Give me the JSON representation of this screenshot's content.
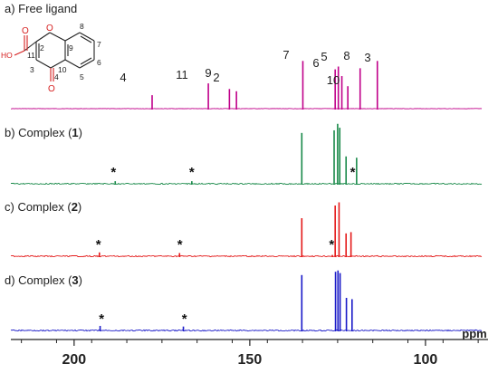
{
  "chart_data": {
    "type": "line",
    "title": "",
    "xlabel": "ppm",
    "x_axis": {
      "range": [
        218,
        84
      ],
      "reversed": true,
      "ticks": [
        200,
        150,
        100
      ]
    },
    "panels": [
      {
        "label_prefix": "a) Free ligand",
        "label_number": "",
        "label_suffix": "",
        "color": "#c0008a",
        "peaks": [
          {
            "ppm": 177.8,
            "height": 0.24,
            "label": "4"
          },
          {
            "ppm": 161.8,
            "height": 0.45,
            "label": "11"
          },
          {
            "ppm": 155.8,
            "height": 0.35,
            "label": "9"
          },
          {
            "ppm": 153.8,
            "height": 0.31,
            "label": "2"
          },
          {
            "ppm": 134.9,
            "height": 0.85,
            "label": "7"
          },
          {
            "ppm": 125.7,
            "height": 0.7,
            "label": "6"
          },
          {
            "ppm": 124.8,
            "height": 0.75,
            "label": "5"
          },
          {
            "ppm": 123.8,
            "height": 0.58,
            "label": ""
          },
          {
            "ppm": 122.1,
            "height": 0.4,
            "label": "10"
          },
          {
            "ppm": 118.6,
            "height": 0.72,
            "label": "8"
          },
          {
            "ppm": 113.7,
            "height": 0.85,
            "label": "3"
          }
        ],
        "asterisks": []
      },
      {
        "label_prefix": "b) Complex (",
        "label_number": "1",
        "label_suffix": ")",
        "color": "#1a8a4a",
        "peaks": [
          {
            "ppm": 188.3,
            "height": 0.04,
            "label": ""
          },
          {
            "ppm": 166.5,
            "height": 0.04,
            "label": ""
          },
          {
            "ppm": 135.2,
            "height": 0.78,
            "label": ""
          },
          {
            "ppm": 126.0,
            "height": 0.82,
            "label": ""
          },
          {
            "ppm": 125.0,
            "height": 0.92,
            "label": ""
          },
          {
            "ppm": 124.4,
            "height": 0.86,
            "label": ""
          },
          {
            "ppm": 122.6,
            "height": 0.42,
            "label": ""
          },
          {
            "ppm": 119.6,
            "height": 0.4,
            "label": ""
          }
        ],
        "asterisks": [
          188.8,
          166.5,
          120.7
        ]
      },
      {
        "label_prefix": "c) Complex (",
        "label_number": "2",
        "label_suffix": ")",
        "color": "#e41a1a",
        "peaks": [
          {
            "ppm": 192.8,
            "height": 0.06,
            "label": ""
          },
          {
            "ppm": 170.0,
            "height": 0.05,
            "label": ""
          },
          {
            "ppm": 135.2,
            "height": 0.6,
            "label": ""
          },
          {
            "ppm": 126.5,
            "height": 0.02,
            "label": ""
          },
          {
            "ppm": 125.7,
            "height": 0.8,
            "label": ""
          },
          {
            "ppm": 124.6,
            "height": 0.85,
            "label": ""
          },
          {
            "ppm": 122.6,
            "height": 0.36,
            "label": ""
          },
          {
            "ppm": 121.2,
            "height": 0.38,
            "label": ""
          }
        ],
        "asterisks": [
          193.1,
          169.9,
          126.7
        ]
      },
      {
        "label_prefix": "d) Complex (",
        "label_number": "3",
        "label_suffix": ")",
        "color": "#1a1ac8",
        "peaks": [
          {
            "ppm": 192.6,
            "height": 0.07,
            "label": ""
          },
          {
            "ppm": 168.9,
            "height": 0.06,
            "label": ""
          },
          {
            "ppm": 135.2,
            "height": 0.85,
            "label": ""
          },
          {
            "ppm": 125.6,
            "height": 0.9,
            "label": ""
          },
          {
            "ppm": 124.9,
            "height": 0.92,
            "label": ""
          },
          {
            "ppm": 124.3,
            "height": 0.88,
            "label": ""
          },
          {
            "ppm": 122.5,
            "height": 0.5,
            "label": ""
          },
          {
            "ppm": 120.9,
            "height": 0.48,
            "label": ""
          }
        ],
        "asterisks": [
          192.2,
          168.6
        ]
      }
    ],
    "structure": {
      "atom_numbers": [
        "2",
        "3",
        "4",
        "5",
        "6",
        "7",
        "8",
        "9",
        "10",
        "11"
      ],
      "oxygen_labels": [
        "O",
        "O",
        "O",
        "HO"
      ]
    },
    "asterisk_symbol": "*"
  }
}
